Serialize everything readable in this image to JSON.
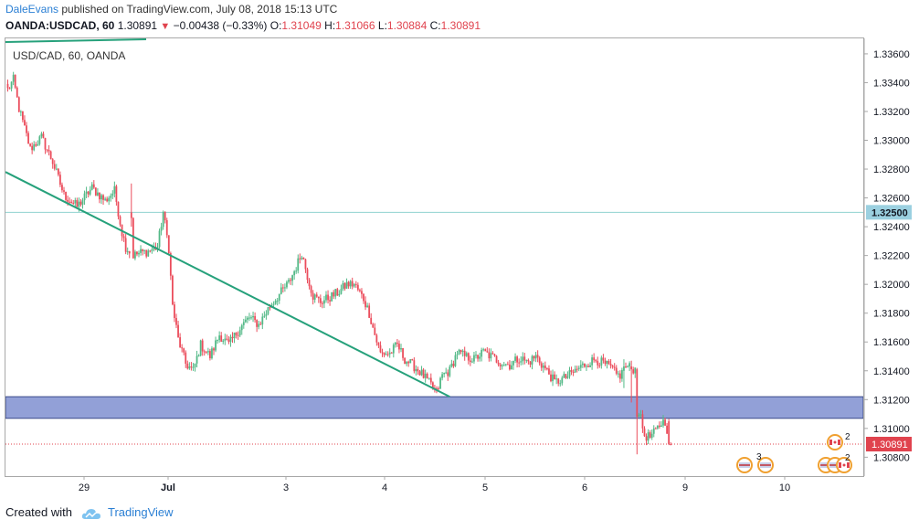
{
  "header": {
    "author": "DaleEvans",
    "published_text": "published on TradingView.com, July 08, 2018 15:13 UTC"
  },
  "ohlc": {
    "symbol": "OANDA:USDCAD, 60",
    "last": "1.30891",
    "change": "−0.00438 (−0.33%)",
    "open_label": "O:",
    "open": "1.31049",
    "high_label": "H:",
    "high": "1.31066",
    "low_label": "L:",
    "low": "1.30884",
    "close_label": "C:",
    "close": "1.30891"
  },
  "footer": {
    "created_with": "Created with",
    "brand": "TradingView"
  },
  "chart_data": {
    "type": "candlestick",
    "title": "USD/CAD, 60, OANDA",
    "ylim": [
      1.3065,
      1.3372
    ],
    "y_ticks": [
      "1.33600",
      "1.33400",
      "1.33200",
      "1.33000",
      "1.32800",
      "1.32600",
      "1.32400",
      "1.32200",
      "1.32000",
      "1.31800",
      "1.31600",
      "1.31400",
      "1.31200",
      "1.31000",
      "1.30800"
    ],
    "x_ticks": [
      "29",
      "Jul",
      "3",
      "4",
      "5",
      "6",
      "9",
      "10"
    ],
    "horizontal_line": {
      "price": 1.325,
      "label": "1.32500",
      "color": "#8fd3d0"
    },
    "current_price": {
      "price": 1.30891,
      "label": "1.30891",
      "color": "#e0434e"
    },
    "support_zone": {
      "top": 1.3122,
      "bottom": 1.3107,
      "color": "#7f8fd0"
    },
    "trendline": {
      "from": {
        "bar": 0,
        "price": 1.3278
      },
      "to": {
        "bar": 236,
        "price": 1.3122
      },
      "color": "#26a17b"
    },
    "event_markers": [
      {
        "flags": [
          "US",
          "US"
        ],
        "count": "3"
      },
      {
        "flags": [
          "CA"
        ],
        "count": "2"
      },
      {
        "flags": [
          "US",
          "US",
          "CA"
        ],
        "count": "2"
      }
    ],
    "up_color": "#53b987",
    "down_color": "#eb4d5c",
    "path": [
      [
        0,
        1.3335
      ],
      [
        3,
        1.3342
      ],
      [
        6,
        1.3322
      ],
      [
        12,
        1.3294
      ],
      [
        18,
        1.3302
      ],
      [
        24,
        1.3285
      ],
      [
        30,
        1.3262
      ],
      [
        37,
        1.3254
      ],
      [
        45,
        1.3267
      ],
      [
        52,
        1.3258
      ],
      [
        57,
        1.3265
      ],
      [
        61,
        1.3236
      ],
      [
        63,
        1.3226
      ],
      [
        67,
        1.322
      ],
      [
        71,
        1.3222
      ],
      [
        75,
        1.3223
      ],
      [
        80,
        1.3226
      ],
      [
        83,
        1.325
      ],
      [
        86,
        1.3225
      ],
      [
        88,
        1.3185
      ],
      [
        91,
        1.3162
      ],
      [
        95,
        1.3145
      ],
      [
        99,
        1.314
      ],
      [
        103,
        1.3158
      ],
      [
        108,
        1.315
      ],
      [
        113,
        1.3165
      ],
      [
        118,
        1.3158
      ],
      [
        124,
        1.317
      ],
      [
        129,
        1.3177
      ],
      [
        134,
        1.3172
      ],
      [
        140,
        1.3185
      ],
      [
        145,
        1.3193
      ],
      [
        150,
        1.3201
      ],
      [
        154,
        1.3212
      ],
      [
        157,
        1.3222
      ],
      [
        160,
        1.3206
      ],
      [
        163,
        1.3192
      ],
      [
        167,
        1.3188
      ],
      [
        172,
        1.3191
      ],
      [
        177,
        1.3195
      ],
      [
        181,
        1.32
      ],
      [
        185,
        1.32
      ],
      [
        190,
        1.319
      ],
      [
        193,
        1.318
      ],
      [
        196,
        1.3165
      ],
      [
        199,
        1.3152
      ],
      [
        204,
        1.3152
      ],
      [
        208,
        1.3158
      ],
      [
        212,
        1.3148
      ],
      [
        217,
        1.3143
      ],
      [
        221,
        1.3138
      ],
      [
        226,
        1.313
      ],
      [
        229,
        1.3125
      ],
      [
        232,
        1.3137
      ],
      [
        236,
        1.314
      ],
      [
        240,
        1.3153
      ],
      [
        244,
        1.315
      ],
      [
        249,
        1.3148
      ],
      [
        254,
        1.3153
      ],
      [
        258,
        1.315
      ],
      [
        263,
        1.3146
      ],
      [
        268,
        1.3144
      ],
      [
        273,
        1.3149
      ],
      [
        278,
        1.3146
      ],
      [
        282,
        1.315
      ],
      [
        286,
        1.3143
      ],
      [
        289,
        1.3138
      ],
      [
        292,
        1.3132
      ],
      [
        296,
        1.3134
      ],
      [
        301,
        1.3138
      ],
      [
        305,
        1.3142
      ],
      [
        309,
        1.3145
      ],
      [
        314,
        1.3148
      ],
      [
        318,
        1.3145
      ],
      [
        322,
        1.3142
      ],
      [
        325,
        1.3137
      ],
      [
        327,
        1.3137
      ],
      [
        331,
        1.3143
      ],
      [
        335,
        1.3141
      ],
      [
        337,
        1.3112
      ],
      [
        340,
        1.3095
      ],
      [
        343,
        1.3094
      ],
      [
        346,
        1.3098
      ],
      [
        349,
        1.3104
      ],
      [
        351,
        1.3105
      ],
      [
        354,
        1.30891
      ]
    ],
    "special_bars": [
      {
        "bar": 66,
        "open": 1.325,
        "high": 1.327,
        "low": 1.324,
        "close": 1.3246
      },
      {
        "bar": 329,
        "open": 1.314,
        "high": 1.3148,
        "low": 1.3128,
        "close": 1.3143
      },
      {
        "bar": 333,
        "open": 1.3143,
        "high": 1.3147,
        "low": 1.3118,
        "close": 1.3141
      },
      {
        "bar": 336,
        "open": 1.3141,
        "high": 1.3142,
        "low": 1.3082,
        "close": 1.3108
      },
      {
        "bar": 353,
        "open": 1.31049,
        "high": 1.31066,
        "low": 1.30884,
        "close": 1.30891
      }
    ]
  }
}
